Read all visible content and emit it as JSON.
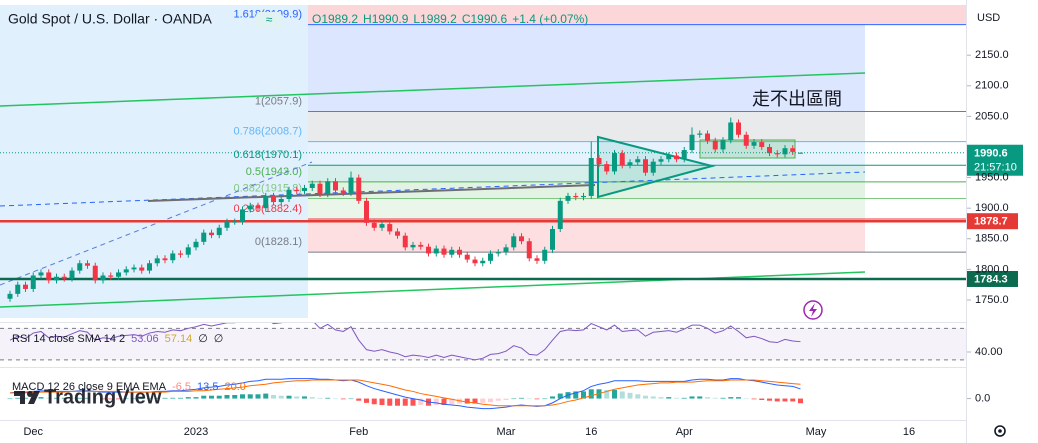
{
  "chart_data": {
    "type": "candlestick",
    "title": "Gold Spot / U.S. Dollar · OANDA",
    "header_badge": "≈",
    "ohlc_legend": [
      "O1989.2",
      "H1990.9",
      "L1989.2",
      "C1990.6",
      "+1.4 (+0.07%)"
    ],
    "currency": "USD",
    "annotation": "走不出區間",
    "countdown": "21:57:10",
    "watermark": "TradingView",
    "categories": [
      null,
      null,
      null,
      "Dec",
      null,
      null,
      null,
      null,
      null,
      null,
      null,
      null,
      null,
      null,
      null,
      null,
      null,
      null,
      null,
      null,
      null,
      null,
      null,
      null,
      "2023",
      null,
      null,
      null,
      null,
      null,
      null,
      null,
      null,
      null,
      null,
      null,
      null,
      null,
      null,
      null,
      null,
      null,
      null,
      null,
      null,
      "Feb",
      null,
      null,
      null,
      null,
      null,
      null,
      null,
      null,
      null,
      null,
      null,
      null,
      null,
      null,
      null,
      null,
      null,
      null,
      "Mar",
      null,
      null,
      null,
      null,
      null,
      null,
      null,
      null,
      null,
      null,
      "16",
      null,
      null,
      null,
      null,
      null,
      null,
      null,
      null,
      null,
      null,
      null,
      "Apr",
      null,
      null,
      null,
      null,
      null,
      null,
      null,
      null,
      null,
      null,
      null,
      null,
      null,
      null,
      null
    ],
    "future_categories": [
      null,
      "May",
      null,
      null,
      null,
      null,
      null,
      null,
      null,
      null,
      null,
      null,
      null,
      "16",
      null,
      null,
      null,
      null,
      null,
      null,
      null
    ],
    "open": [
      1752,
      1760,
      1775,
      1768,
      1790,
      1795,
      1782,
      1788,
      1785,
      1798,
      1810,
      1806,
      1782,
      1790,
      1788,
      1795,
      1800,
      1803,
      1798,
      1810,
      1818,
      1815,
      1826,
      1824,
      1836,
      1845,
      1860,
      1856,
      1868,
      1878,
      1878,
      1898,
      1904,
      1900,
      1920,
      1910,
      1915,
      1930,
      1928,
      1933,
      1940,
      1923,
      1944,
      1929,
      1925,
      1950,
      1912,
      1876,
      1868,
      1874,
      1862,
      1855,
      1836,
      1840,
      1837,
      1826,
      1834,
      1824,
      1832,
      1824,
      1816,
      1810,
      1814,
      1826,
      1828,
      1836,
      1854,
      1846,
      1818,
      1814,
      1832,
      1866,
      1912,
      1920,
      1918,
      1920,
      1982,
      1972,
      1960,
      1990,
      1970,
      1975,
      1980,
      1958,
      1976,
      1980,
      1986,
      1980,
      1995,
      2020,
      2022,
      2010,
      1996,
      2011,
      2040,
      2020,
      2002,
      2008,
      2000,
      1990,
      1988,
      1998,
      1989.2
    ],
    "high": [
      1765,
      1780,
      1780,
      1795,
      1800,
      1800,
      1793,
      1793,
      1803,
      1815,
      1815,
      1811,
      1795,
      1795,
      1800,
      1805,
      1808,
      1808,
      1815,
      1823,
      1823,
      1831,
      1831,
      1841,
      1850,
      1865,
      1865,
      1873,
      1883,
      1883,
      1903,
      1909,
      1909,
      1925,
      1925,
      1920,
      1935,
      1935,
      1938,
      1945,
      1945,
      1949,
      1949,
      1934,
      1960,
      1955,
      1917,
      1881,
      1879,
      1879,
      1867,
      1860,
      1845,
      1845,
      1842,
      1839,
      1839,
      1837,
      1837,
      1829,
      1821,
      1819,
      1831,
      1833,
      1841,
      1859,
      1859,
      1851,
      1823,
      1837,
      1871,
      1917,
      1925,
      1925,
      1925,
      2009,
      1987,
      1977,
      1995,
      1995,
      1980,
      1985,
      1985,
      1981,
      1985,
      1991,
      1991,
      2000,
      2032,
      2027,
      2027,
      2015,
      2016,
      2048,
      2045,
      2025,
      2013,
      2013,
      2005,
      1995,
      2003,
      2003,
      1990.9
    ],
    "low": [
      1747,
      1755,
      1763,
      1763,
      1785,
      1777,
      1777,
      1780,
      1780,
      1793,
      1801,
      1777,
      1777,
      1783,
      1783,
      1790,
      1795,
      1793,
      1793,
      1805,
      1810,
      1810,
      1819,
      1819,
      1831,
      1840,
      1851,
      1851,
      1863,
      1873,
      1873,
      1893,
      1895,
      1895,
      1905,
      1905,
      1910,
      1923,
      1923,
      1928,
      1918,
      1918,
      1924,
      1920,
      1920,
      1907,
      1871,
      1863,
      1863,
      1857,
      1850,
      1831,
      1831,
      1832,
      1821,
      1821,
      1819,
      1819,
      1819,
      1811,
      1805,
      1805,
      1809,
      1821,
      1823,
      1831,
      1841,
      1813,
      1809,
      1809,
      1827,
      1861,
      1907,
      1913,
      1913,
      1915,
      1967,
      1955,
      1955,
      1965,
      1965,
      1970,
      1953,
      1953,
      1971,
      1975,
      1975,
      1975,
      1990,
      2015,
      2005,
      1991,
      1991,
      2006,
      2015,
      1997,
      1997,
      1995,
      1985,
      1983,
      1983,
      1987,
      1989.2
    ],
    "close": [
      1760,
      1775,
      1768,
      1790,
      1795,
      1782,
      1788,
      1785,
      1798,
      1810,
      1806,
      1782,
      1790,
      1788,
      1795,
      1800,
      1803,
      1798,
      1810,
      1818,
      1815,
      1826,
      1824,
      1836,
      1845,
      1860,
      1856,
      1868,
      1878,
      1878,
      1898,
      1904,
      1900,
      1920,
      1910,
      1915,
      1930,
      1928,
      1933,
      1940,
      1923,
      1944,
      1929,
      1925,
      1950,
      1912,
      1876,
      1868,
      1874,
      1862,
      1855,
      1836,
      1840,
      1837,
      1826,
      1834,
      1824,
      1832,
      1824,
      1816,
      1810,
      1814,
      1826,
      1828,
      1836,
      1854,
      1846,
      1818,
      1814,
      1832,
      1866,
      1912,
      1920,
      1918,
      1920,
      1982,
      1972,
      1960,
      1990,
      1970,
      1975,
      1980,
      1958,
      1976,
      1980,
      1986,
      1980,
      1995,
      2020,
      2022,
      2010,
      1996,
      2011,
      2040,
      2020,
      2002,
      2008,
      2000,
      1990,
      1988,
      1998,
      1992,
      1990.6
    ],
    "up_color": "#089981",
    "down_color": "#f23645",
    "ylim": [
      1714,
      2232
    ],
    "yticks": [
      {
        "value": 1750,
        "label": "1750.0"
      },
      {
        "value": 1800,
        "label": "1800.0"
      },
      {
        "value": 1850,
        "label": "1850.0"
      },
      {
        "value": 1900,
        "label": "1900.0"
      },
      {
        "value": 1950,
        "label": "1950.0"
      },
      {
        "value": 2050,
        "label": "2050.0"
      },
      {
        "value": 2100,
        "label": "2100.0"
      },
      {
        "value": 2150,
        "label": "2150.0"
      }
    ],
    "fib_levels": [
      {
        "value": 2199.9,
        "label": "1.618(2199.9)",
        "color": "#2962ff"
      },
      {
        "value": 2057.9,
        "label": "1(2057.9)",
        "color": "#787b86"
      },
      {
        "value": 2008.7,
        "label": "0.786(2008.7)",
        "color": "#64b5f6"
      },
      {
        "value": 1970.1,
        "label": "0.618(1970.1)",
        "color": "#089981"
      },
      {
        "value": 1943.0,
        "label": "0.5(1943.0)",
        "color": "#4caf50"
      },
      {
        "value": 1915.8,
        "label": "0.382(1915.8)",
        "color": "#81c784"
      },
      {
        "value": 1882.4,
        "label": "0.236(1882.4)",
        "color": "#f23645"
      },
      {
        "value": 1828.1,
        "label": "0(1828.1)",
        "color": "#787b86"
      }
    ],
    "hlines": [
      {
        "value": 1878.7,
        "label": "1878.7",
        "color": "#e53935"
      },
      {
        "value": 1784.3,
        "label": "1784.3",
        "color": "#0c6b4f"
      }
    ],
    "rsi": {
      "legend": [
        "RSI 14 close SMA 14 2",
        "53.06",
        "57.14",
        "∅",
        "∅"
      ],
      "color": "#7e57c2",
      "values": [
        55,
        60,
        57,
        64,
        66,
        58,
        60,
        59,
        63,
        67,
        65,
        55,
        58,
        57,
        60,
        61,
        62,
        60,
        64,
        66,
        65,
        68,
        67,
        70,
        72,
        75,
        73,
        75,
        77,
        77,
        80,
        81,
        79,
        82,
        76,
        77,
        79,
        78,
        79,
        80,
        70,
        75,
        68,
        66,
        72,
        55,
        43,
        41,
        43,
        40,
        38,
        34,
        36,
        35,
        33,
        36,
        33,
        36,
        34,
        32,
        30,
        32,
        37,
        38,
        41,
        48,
        45,
        37,
        36,
        43,
        55,
        66,
        68,
        67,
        68,
        76,
        72,
        68,
        74,
        66,
        67,
        68,
        60,
        65,
        66,
        67,
        65,
        69,
        74,
        74,
        70,
        64,
        67,
        73,
        66,
        58,
        60,
        57,
        53,
        52,
        56,
        54,
        53.06
      ],
      "bands": [
        30,
        70
      ],
      "ylim": [
        21,
        78
      ],
      "yticks": [
        {
          "value": 40,
          "label": "40.00"
        }
      ]
    },
    "macd": {
      "legend": [
        "MACD 12 26 close 9 EMA EMA",
        "-6.5",
        "13.5",
        "20.0"
      ],
      "macd_color": "#2962ff",
      "signal_color": "#ff6d00",
      "macd": [
        8,
        9,
        9,
        10,
        11,
        10,
        10,
        10,
        10,
        11,
        11,
        10,
        9,
        9,
        9,
        9,
        9,
        9,
        9,
        10,
        10,
        11,
        11,
        12,
        13,
        15,
        16,
        17,
        19,
        20,
        22,
        24,
        25,
        27,
        27,
        27,
        28,
        28,
        28,
        28,
        27,
        27,
        26,
        25,
        26,
        23,
        18,
        14,
        11,
        8,
        5,
        2,
        0,
        -2,
        -5,
        -6,
        -8,
        -9,
        -10,
        -12,
        -13,
        -14,
        -14,
        -13,
        -12,
        -10,
        -9,
        -10,
        -11,
        -10,
        -6,
        0,
        5,
        8,
        11,
        17,
        20,
        22,
        25,
        25,
        25,
        25,
        24,
        24,
        24,
        24,
        24,
        24,
        26,
        27,
        27,
        26,
        26,
        28,
        28,
        26,
        25,
        23,
        21,
        19,
        18,
        17,
        13.5
      ],
      "signal": [
        8,
        8,
        8,
        9,
        9,
        9,
        9,
        9,
        10,
        10,
        10,
        10,
        10,
        10,
        10,
        9,
        9,
        9,
        9,
        9,
        9,
        10,
        10,
        10,
        11,
        11,
        12,
        13,
        14,
        15,
        16,
        18,
        19,
        20,
        22,
        23,
        24,
        25,
        25,
        26,
        26,
        26,
        26,
        26,
        26,
        26,
        24,
        22,
        20,
        18,
        15,
        12,
        10,
        7,
        5,
        3,
        1,
        -1,
        -3,
        -5,
        -6,
        -8,
        -9,
        -10,
        -10,
        -10,
        -10,
        -10,
        -10,
        -10,
        -9,
        -7,
        -4,
        -2,
        1,
        4,
        7,
        10,
        13,
        15,
        17,
        19,
        20,
        21,
        22,
        22,
        23,
        23,
        23,
        24,
        25,
        25,
        25,
        26,
        26,
        26,
        26,
        25,
        24,
        23,
        22,
        21,
        20.0
      ],
      "hist": [
        0,
        1,
        1,
        1,
        2,
        1,
        1,
        1,
        0,
        1,
        1,
        0,
        -1,
        -1,
        -1,
        0,
        0,
        0,
        0,
        1,
        1,
        1,
        1,
        2,
        2,
        4,
        4,
        4,
        5,
        5,
        6,
        6,
        6,
        7,
        5,
        4,
        4,
        3,
        3,
        2,
        1,
        1,
        0,
        -1,
        0,
        -3,
        -6,
        -8,
        -9,
        -10,
        -10,
        -10,
        -10,
        -9,
        -10,
        -9,
        -9,
        -8,
        -7,
        -7,
        -7,
        -6,
        -5,
        -3,
        -2,
        0,
        1,
        0,
        -1,
        0,
        3,
        7,
        9,
        10,
        10,
        13,
        13,
        12,
        12,
        10,
        8,
        6,
        4,
        3,
        2,
        2,
        1,
        1,
        3,
        3,
        2,
        1,
        1,
        2,
        2,
        0,
        -1,
        -2,
        -3,
        -4,
        -4,
        -4,
        -6.5
      ],
      "ylim": [
        -30,
        40
      ],
      "yticks": [
        {
          "value": 0,
          "label": "0.0"
        }
      ]
    }
  }
}
